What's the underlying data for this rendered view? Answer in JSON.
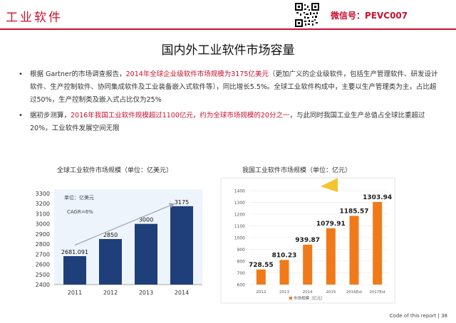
{
  "header": {
    "title": "工业软件",
    "wechat_label": "微信号：PEVC007"
  },
  "page_title": "国内外工业软件市场容量",
  "bullets": [
    {
      "marker": "•",
      "parts": [
        "根据 Gartner的市场调查报告，",
        "2014年全球企业级软件市场规模为3175亿美元",
        "（更加广义的企业级软件，包括生产管理软件、研发设计软件、生产控制软件、协同集成软件及工业装备嵌入式软件等），同比增长5.5%。全球工业软件构成中，主要以生产管理类为主，占比超过50%，生产控制类及嵌入式占比仅为25%"
      ]
    },
    {
      "marker": "•",
      "parts": [
        "据初步测算，",
        "2016年我国工业软件规模超过1100亿元，约为全球市场规模的20分之一",
        "，与此同时我国工业生产总值占全球比重超过20%，工业软件发展空间无限"
      ]
    }
  ],
  "chart_data": [
    {
      "type": "bar",
      "title": "全球工业软件市场规模（单位：亿美元）",
      "unit_label": "单位：亿美元",
      "annotation": "CAGR=6%",
      "categories": [
        "2011",
        "2012",
        "2013",
        "2014"
      ],
      "values": [
        2681.091,
        2850,
        3000,
        3175
      ],
      "value_labels": [
        "2681.091",
        "2850",
        "3000",
        "3175"
      ],
      "ylim": [
        2400,
        3300
      ],
      "yticks": [
        "2400",
        "2500",
        "2600",
        "2700",
        "2800",
        "2900",
        "3000",
        "3100",
        "3200",
        "3300"
      ],
      "color": "#1f3f7a",
      "grid": false
    },
    {
      "type": "bar",
      "title": "我国工业软件市场规模（单位：亿元）",
      "legend_label": "市场规模（亿元）",
      "categories": [
        "2012",
        "2013",
        "2014",
        "2015",
        "2016Est",
        "2017Est"
      ],
      "values": [
        728.55,
        810.23,
        939.87,
        1079.91,
        1185.57,
        1303.94
      ],
      "value_labels": [
        "728.55",
        "810.23",
        "939.87",
        "1079.91",
        "1185.57",
        "1303.94"
      ],
      "ylim": [
        600,
        1400
      ],
      "yticks": [
        "600",
        "700",
        "800",
        "900",
        "1000",
        "1100",
        "1200",
        "1300",
        "1400"
      ],
      "color": "#f07a1a",
      "grid": true
    }
  ],
  "footer": "Code of this report  |  38"
}
